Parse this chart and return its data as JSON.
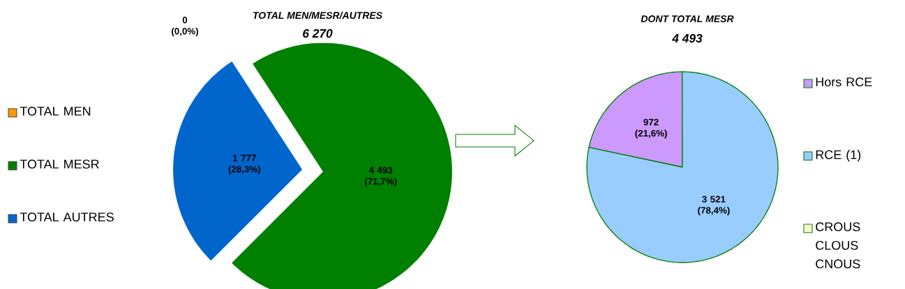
{
  "chart_data": [
    {
      "type": "pie",
      "title": "TOTAL MEN/MESR/AUTRES",
      "subtitle": "6 270",
      "categories": [
        "TOTAL MEN",
        "TOTAL MESR",
        "TOTAL AUTRES"
      ],
      "values": [
        0,
        4493,
        1777
      ],
      "colors": [
        "#ff9900",
        "#008000",
        "#0066cc"
      ],
      "value_labels": [
        "0 (0,0%)",
        "4 493 (71,7%)",
        "1 777 (28,3%)"
      ],
      "legend": "left"
    },
    {
      "type": "pie",
      "title": "DONT TOTAL MESR",
      "subtitle": "4 493",
      "categories": [
        "Hors RCE",
        "RCE (1)",
        "CROUS CLOUS CNOUS"
      ],
      "values": [
        972,
        3521,
        0
      ],
      "colors": [
        "#cc99ff",
        "#99ccff",
        "#ffffcc"
      ],
      "value_labels": [
        "972 (21,6%)",
        "3 521 (78,4%)",
        null
      ],
      "legend": "right"
    }
  ]
}
